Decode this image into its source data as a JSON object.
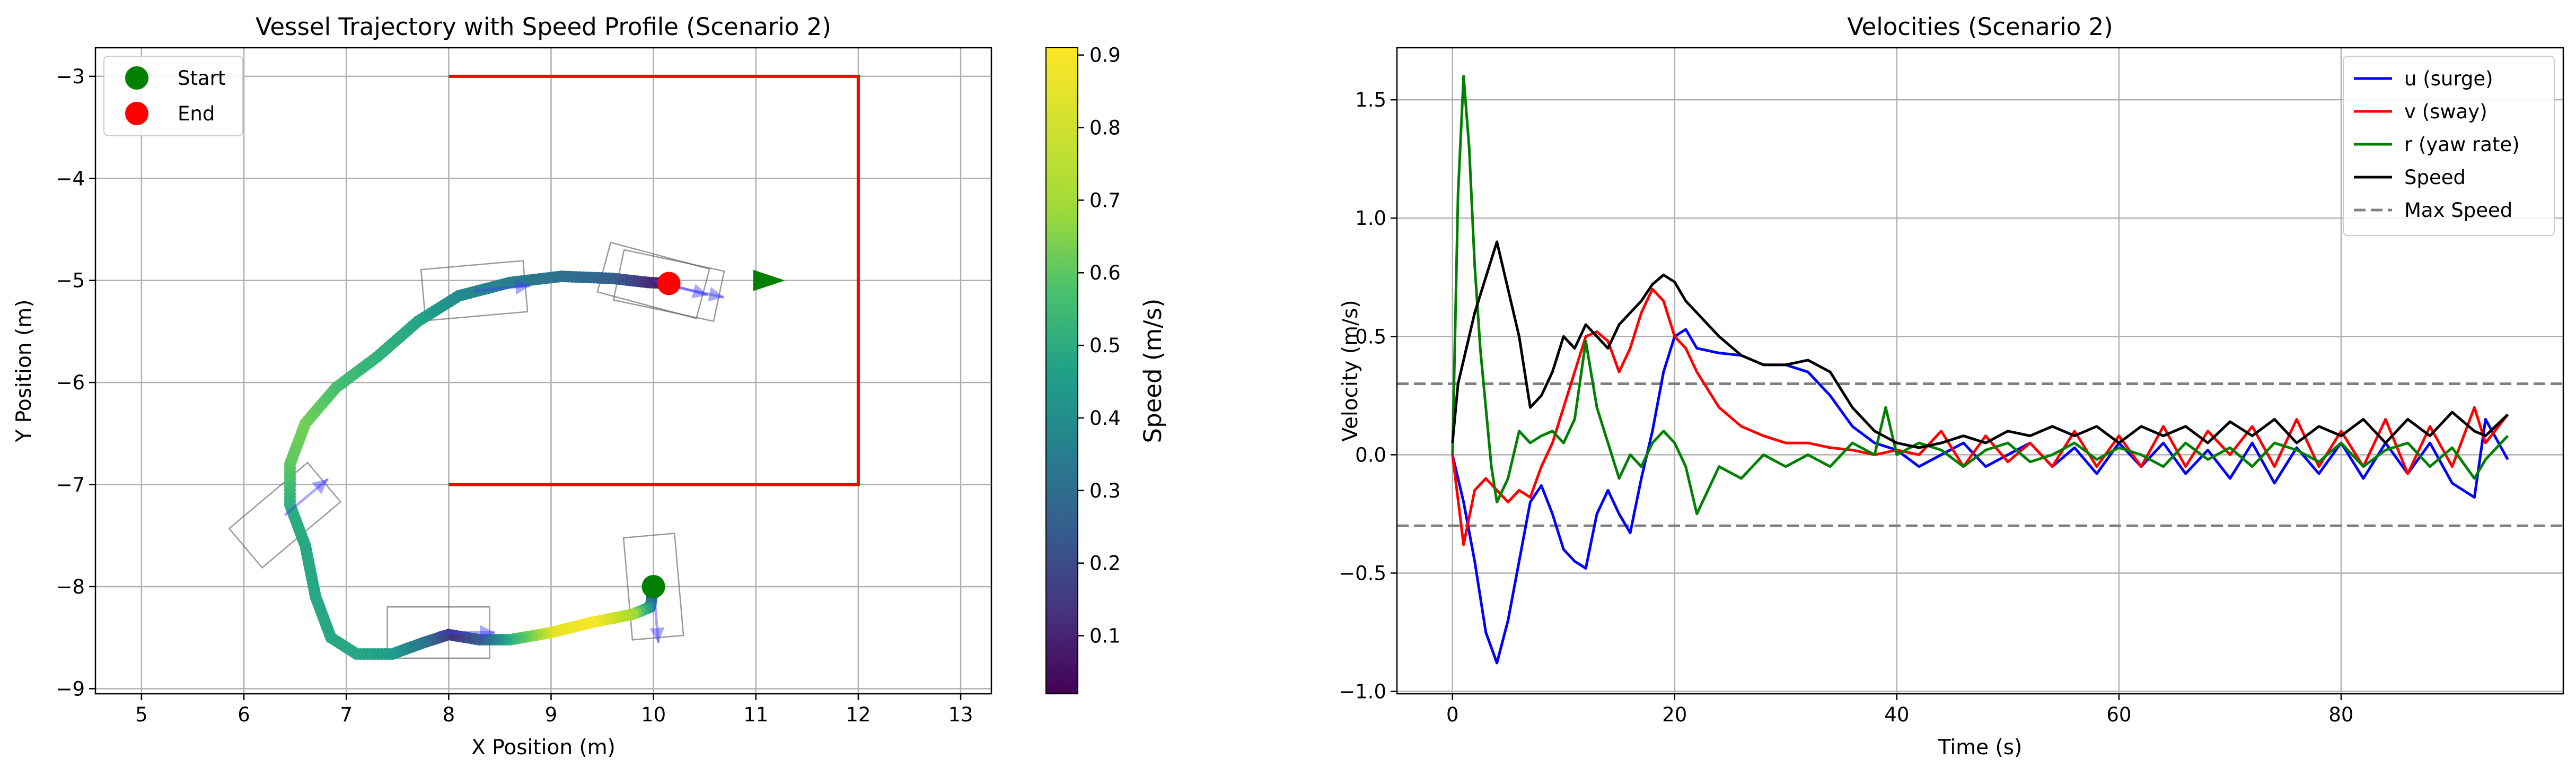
{
  "chart_data": [
    {
      "type": "scatter",
      "title": "Vessel Trajectory with Speed Profile (Scenario 2)",
      "xlabel": "X Position (m)",
      "ylabel": "Y Position (m)",
      "xlim": [
        4.55,
        13.3
      ],
      "ylim": [
        -9.05,
        -2.72
      ],
      "xticks": [
        5,
        6,
        7,
        8,
        9,
        10,
        11,
        12,
        13
      ],
      "yticks": [
        -9,
        -8,
        -7,
        -6,
        -5,
        -4,
        -3
      ],
      "grid": true,
      "legend_position": "upper left",
      "legend": [
        {
          "label": "Start",
          "color": "#008000"
        },
        {
          "label": "End",
          "color": "#ff0000"
        }
      ],
      "start": {
        "x": 10.0,
        "y": -8.0
      },
      "end": {
        "x": 10.15,
        "y": -5.03
      },
      "target_boundary": {
        "color": "#ff0000",
        "path": [
          [
            8,
            -3
          ],
          [
            12,
            -3
          ],
          [
            12,
            -7
          ],
          [
            8,
            -7
          ]
        ]
      },
      "goal_arrow": {
        "x": 11.0,
        "y": -5.0,
        "heading_deg": 0,
        "color": "#008000"
      },
      "trajectory": [
        {
          "x": 10.0,
          "y": -8.0,
          "speed": 0.05
        },
        {
          "x": 9.97,
          "y": -8.2,
          "speed": 0.45
        },
        {
          "x": 9.8,
          "y": -8.27,
          "speed": 0.78
        },
        {
          "x": 9.4,
          "y": -8.35,
          "speed": 0.9
        },
        {
          "x": 9.0,
          "y": -8.45,
          "speed": 0.88
        },
        {
          "x": 8.6,
          "y": -8.52,
          "speed": 0.6
        },
        {
          "x": 8.3,
          "y": -8.52,
          "speed": 0.3
        },
        {
          "x": 8.0,
          "y": -8.47,
          "speed": 0.15
        },
        {
          "x": 7.75,
          "y": -8.55,
          "speed": 0.35
        },
        {
          "x": 7.45,
          "y": -8.66,
          "speed": 0.5
        },
        {
          "x": 7.1,
          "y": -8.66,
          "speed": 0.55
        },
        {
          "x": 6.85,
          "y": -8.5,
          "speed": 0.55
        },
        {
          "x": 6.7,
          "y": -8.1,
          "speed": 0.55
        },
        {
          "x": 6.6,
          "y": -7.6,
          "speed": 0.55
        },
        {
          "x": 6.45,
          "y": -7.2,
          "speed": 0.58
        },
        {
          "x": 6.45,
          "y": -6.8,
          "speed": 0.68
        },
        {
          "x": 6.6,
          "y": -6.4,
          "speed": 0.72
        },
        {
          "x": 6.9,
          "y": -6.05,
          "speed": 0.65
        },
        {
          "x": 7.3,
          "y": -5.75,
          "speed": 0.6
        },
        {
          "x": 7.7,
          "y": -5.4,
          "speed": 0.55
        },
        {
          "x": 8.1,
          "y": -5.15,
          "speed": 0.45
        },
        {
          "x": 8.6,
          "y": -5.02,
          "speed": 0.4
        },
        {
          "x": 9.1,
          "y": -4.96,
          "speed": 0.35
        },
        {
          "x": 9.6,
          "y": -4.98,
          "speed": 0.3
        },
        {
          "x": 9.95,
          "y": -5.02,
          "speed": 0.15
        },
        {
          "x": 10.15,
          "y": -5.03,
          "speed": 0.05
        }
      ],
      "vessel_outlines": [
        {
          "x": 10.0,
          "y": -8.0,
          "heading_deg": -85
        },
        {
          "x": 7.9,
          "y": -8.45,
          "heading_deg": 0
        },
        {
          "x": 6.4,
          "y": -7.3,
          "heading_deg": 40
        },
        {
          "x": 8.25,
          "y": -5.1,
          "heading_deg": 5
        },
        {
          "x": 10.0,
          "y": -5.0,
          "heading_deg": -15
        },
        {
          "x": 10.15,
          "y": -5.05,
          "heading_deg": -12
        }
      ],
      "colorbar": {
        "label": "Speed (m/s)",
        "range": [
          0.02,
          0.91
        ],
        "ticks": [
          0.1,
          0.2,
          0.3,
          0.4,
          0.5,
          0.6,
          0.7,
          0.8,
          0.9
        ]
      }
    },
    {
      "type": "line",
      "title": "Velocities (Scenario 2)",
      "xlabel": "Time (s)",
      "ylabel": "Velocity (m/s)",
      "xlim": [
        -5,
        100
      ],
      "ylim": [
        -1.01,
        1.72
      ],
      "xticks": [
        0,
        20,
        40,
        60,
        80
      ],
      "yticks": [
        -1.0,
        -0.5,
        0.0,
        0.5,
        1.0,
        1.5
      ],
      "grid": true,
      "legend_position": "upper right",
      "series": [
        {
          "name": "u (surge)",
          "color": "#0000ff",
          "x": [
            0,
            1,
            2,
            3,
            4,
            5,
            6,
            7,
            8,
            9,
            10,
            11,
            12,
            13,
            14,
            15,
            16,
            17,
            18,
            19,
            20,
            21,
            22,
            24,
            26,
            28,
            30,
            32,
            34,
            36,
            38,
            40,
            42,
            44,
            46,
            48,
            50,
            52,
            54,
            56,
            58,
            60,
            62,
            64,
            66,
            68,
            70,
            72,
            74,
            76,
            78,
            80,
            82,
            84,
            86,
            88,
            90,
            92,
            93,
            95
          ],
          "y": [
            0.0,
            -0.2,
            -0.45,
            -0.75,
            -0.88,
            -0.7,
            -0.45,
            -0.2,
            -0.13,
            -0.25,
            -0.4,
            -0.45,
            -0.48,
            -0.25,
            -0.15,
            -0.25,
            -0.33,
            -0.1,
            0.1,
            0.35,
            0.5,
            0.53,
            0.45,
            0.43,
            0.42,
            0.38,
            0.38,
            0.35,
            0.25,
            0.12,
            0.05,
            0.02,
            -0.05,
            0.0,
            0.05,
            -0.05,
            0.0,
            0.05,
            -0.05,
            0.03,
            -0.08,
            0.05,
            -0.05,
            0.05,
            -0.08,
            0.02,
            -0.1,
            0.05,
            -0.12,
            0.03,
            -0.08,
            0.05,
            -0.1,
            0.05,
            -0.08,
            0.05,
            -0.12,
            -0.18,
            0.15,
            -0.02
          ]
        },
        {
          "name": "v (sway)",
          "color": "#ff0000",
          "x": [
            0,
            1,
            2,
            3,
            4,
            5,
            6,
            7,
            8,
            9,
            10,
            11,
            12,
            13,
            14,
            15,
            16,
            17,
            18,
            19,
            20,
            21,
            22,
            24,
            26,
            28,
            30,
            32,
            34,
            36,
            38,
            40,
            42,
            44,
            46,
            48,
            50,
            52,
            54,
            56,
            58,
            60,
            62,
            64,
            66,
            68,
            70,
            72,
            74,
            76,
            78,
            80,
            82,
            84,
            86,
            88,
            90,
            92,
            93,
            95
          ],
          "y": [
            0.0,
            -0.38,
            -0.15,
            -0.1,
            -0.15,
            -0.2,
            -0.15,
            -0.18,
            -0.05,
            0.05,
            0.2,
            0.35,
            0.5,
            0.52,
            0.48,
            0.35,
            0.45,
            0.6,
            0.7,
            0.65,
            0.5,
            0.45,
            0.35,
            0.2,
            0.12,
            0.08,
            0.05,
            0.05,
            0.03,
            0.02,
            0.0,
            0.02,
            0.0,
            0.1,
            -0.05,
            0.08,
            -0.03,
            0.05,
            -0.05,
            0.1,
            -0.05,
            0.08,
            -0.05,
            0.12,
            -0.05,
            0.1,
            0.0,
            0.12,
            -0.05,
            0.15,
            -0.05,
            0.1,
            -0.05,
            0.15,
            -0.08,
            0.12,
            -0.05,
            0.2,
            0.05,
            0.17
          ]
        },
        {
          "name": "r (yaw rate)",
          "color": "#008000",
          "x": [
            0,
            0.5,
            1,
            1.5,
            2,
            2.5,
            3,
            3.5,
            4,
            5,
            6,
            7,
            8,
            9,
            10,
            11,
            12,
            13,
            14,
            15,
            16,
            17,
            18,
            19,
            20,
            21,
            22,
            24,
            26,
            28,
            30,
            32,
            34,
            36,
            38,
            39,
            40,
            42,
            44,
            46,
            48,
            50,
            52,
            54,
            56,
            58,
            60,
            62,
            64,
            66,
            68,
            70,
            72,
            74,
            76,
            78,
            80,
            82,
            84,
            86,
            88,
            90,
            92,
            93,
            95
          ],
          "y": [
            0.0,
            1.1,
            1.6,
            1.3,
            0.8,
            0.45,
            0.2,
            -0.05,
            -0.2,
            -0.1,
            0.1,
            0.05,
            0.08,
            0.1,
            0.05,
            0.15,
            0.48,
            0.2,
            0.05,
            -0.1,
            0.0,
            -0.05,
            0.05,
            0.1,
            0.05,
            -0.05,
            -0.25,
            -0.05,
            -0.1,
            0.0,
            -0.05,
            0.0,
            -0.05,
            0.05,
            0.0,
            0.2,
            0.0,
            0.05,
            0.02,
            -0.05,
            0.02,
            0.05,
            -0.03,
            0.0,
            0.05,
            -0.02,
            0.03,
            0.0,
            -0.05,
            0.05,
            -0.02,
            0.03,
            -0.05,
            0.05,
            0.02,
            -0.03,
            0.05,
            -0.05,
            0.02,
            0.05,
            -0.05,
            0.03,
            -0.1,
            -0.02,
            0.08
          ]
        },
        {
          "name": "Speed",
          "color": "#000000",
          "x": [
            0,
            0.5,
            1,
            2,
            3,
            4,
            5,
            6,
            7,
            8,
            9,
            10,
            11,
            12,
            13,
            14,
            15,
            16,
            17,
            18,
            19,
            20,
            21,
            22,
            24,
            26,
            28,
            30,
            32,
            34,
            36,
            38,
            40,
            42,
            44,
            46,
            48,
            50,
            52,
            54,
            56,
            58,
            60,
            62,
            64,
            66,
            68,
            70,
            72,
            74,
            76,
            78,
            80,
            82,
            84,
            86,
            88,
            90,
            92,
            93,
            95
          ],
          "y": [
            0.05,
            0.3,
            0.4,
            0.6,
            0.75,
            0.9,
            0.7,
            0.5,
            0.2,
            0.25,
            0.35,
            0.5,
            0.45,
            0.55,
            0.5,
            0.45,
            0.55,
            0.6,
            0.65,
            0.72,
            0.76,
            0.73,
            0.65,
            0.6,
            0.5,
            0.42,
            0.38,
            0.38,
            0.4,
            0.35,
            0.2,
            0.1,
            0.05,
            0.03,
            0.05,
            0.08,
            0.05,
            0.1,
            0.08,
            0.12,
            0.08,
            0.12,
            0.05,
            0.12,
            0.08,
            0.12,
            0.05,
            0.14,
            0.08,
            0.15,
            0.05,
            0.12,
            0.08,
            0.15,
            0.05,
            0.15,
            0.08,
            0.18,
            0.1,
            0.08,
            0.17
          ]
        }
      ],
      "max_speed": {
        "name": "Max Speed",
        "value": 0.3,
        "color": "#808080"
      }
    }
  ]
}
